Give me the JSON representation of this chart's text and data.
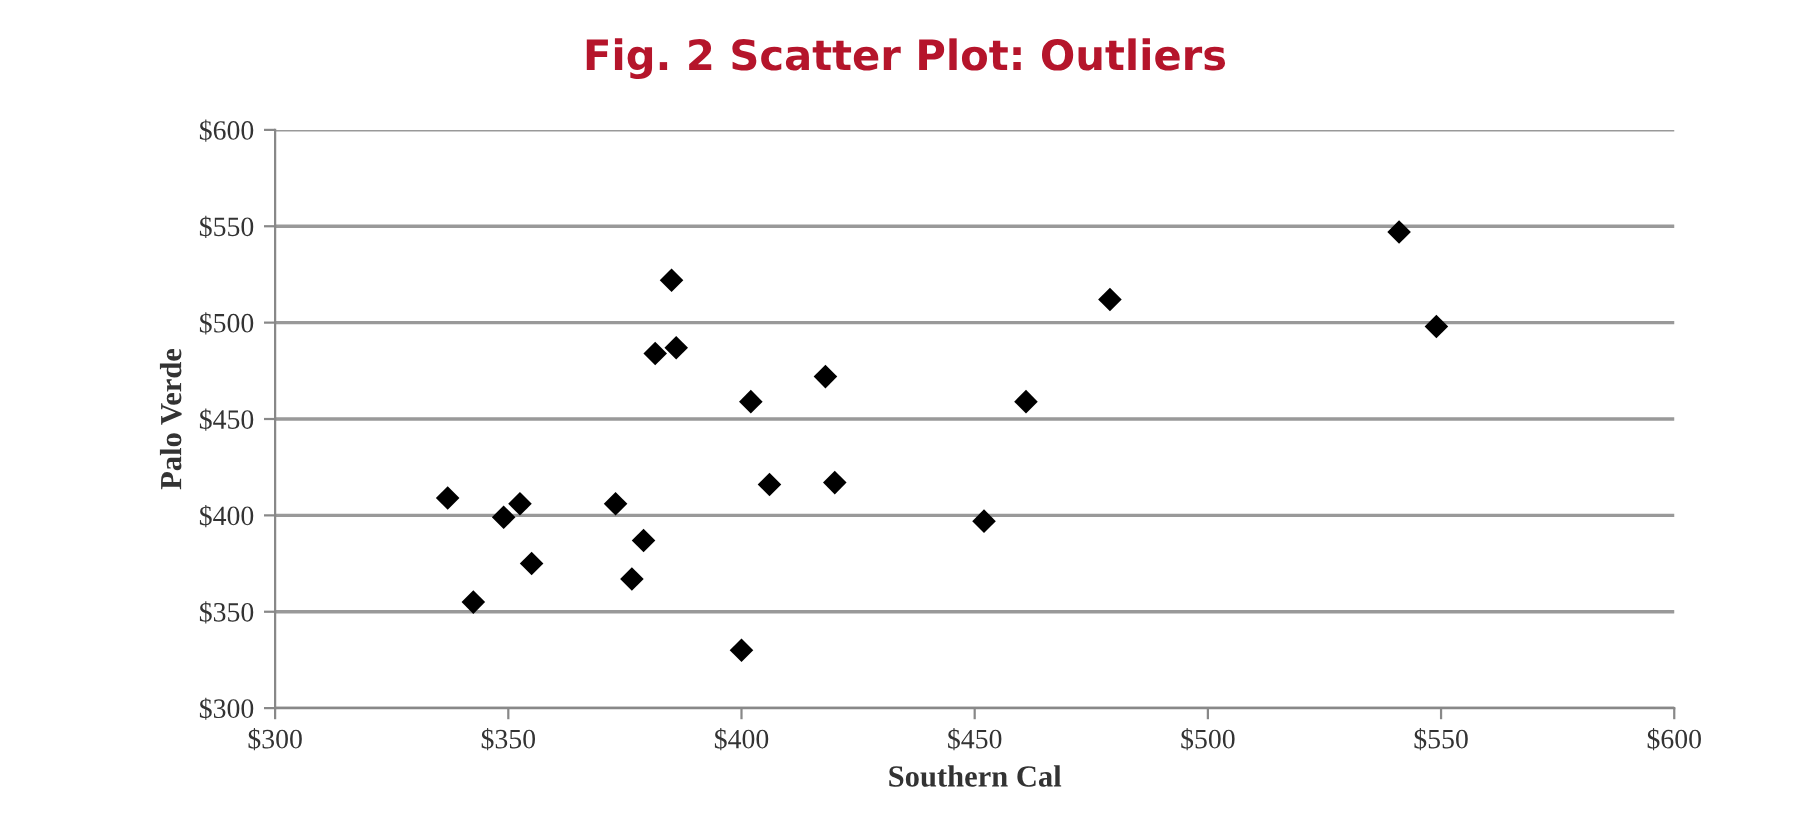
{
  "chart_data": {
    "type": "scatter",
    "title": "Fig. 2 Scatter Plot: Outliers",
    "xlabel": "Southern Cal",
    "ylabel": "Palo Verde",
    "series": [
      {
        "color": "#000000",
        "x": [
          337,
          342.5,
          349,
          352.5,
          355,
          373,
          379,
          376.5,
          385,
          381.5,
          386,
          402,
          406,
          400,
          418,
          420,
          452,
          461,
          479,
          541,
          549
        ],
        "values": [
          409,
          355,
          399,
          406,
          375,
          406,
          387,
          367,
          522,
          484,
          487,
          459,
          416,
          330,
          472,
          417,
          397,
          459,
          512,
          547,
          498
        ]
      }
    ],
    "marker": "diamond",
    "grid": "y",
    "xlim": [
      300,
      600
    ],
    "ylim": [
      300,
      600
    ],
    "xticks": [
      {
        "value": 300,
        "label": "$300"
      },
      {
        "value": 350,
        "label": "$350"
      },
      {
        "value": 400,
        "label": "$400"
      },
      {
        "value": 450,
        "label": "$450"
      },
      {
        "value": 500,
        "label": "$500"
      },
      {
        "value": 550,
        "label": "$550"
      },
      {
        "value": 600,
        "label": "$600"
      }
    ],
    "yticks": [
      {
        "value": 300,
        "label": "$300"
      },
      {
        "value": 350,
        "label": "$350"
      },
      {
        "value": 400,
        "label": "$400"
      },
      {
        "value": 450,
        "label": "$450"
      },
      {
        "value": 500,
        "label": "$500"
      },
      {
        "value": 550,
        "label": "$550"
      },
      {
        "value": 600,
        "label": "$600"
      }
    ]
  }
}
